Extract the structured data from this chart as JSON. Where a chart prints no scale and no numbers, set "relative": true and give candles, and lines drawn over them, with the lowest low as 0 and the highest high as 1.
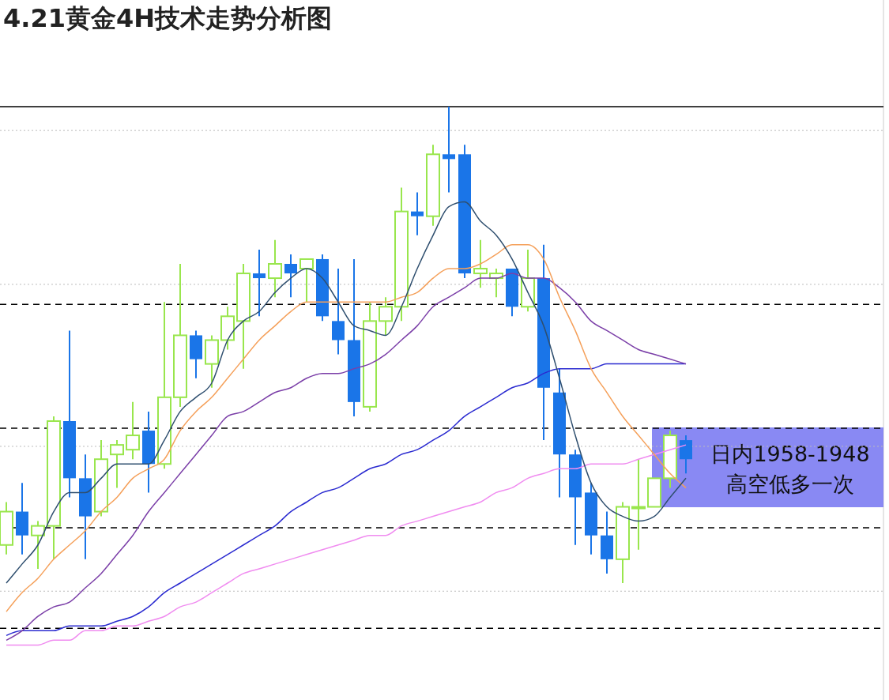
{
  "chart_data": {
    "type": "candlestick",
    "title": "4.21黄金4H技术走势分析图",
    "relative": true,
    "categories": [
      null,
      null,
      null,
      null,
      null,
      null,
      null,
      null,
      null,
      null,
      null,
      null,
      null,
      null,
      null,
      null,
      null,
      null,
      null,
      null,
      null,
      null,
      null,
      null,
      null,
      null,
      null,
      null,
      null,
      null,
      null,
      null,
      null,
      null,
      null,
      null,
      null,
      null,
      null,
      null,
      null,
      null,
      null,
      null
    ],
    "ohlc": [
      [
        0.08,
        0.17,
        0.06,
        0.15
      ],
      [
        0.15,
        0.21,
        0.06,
        0.1
      ],
      [
        0.1,
        0.13,
        0.03,
        0.12
      ],
      [
        0.12,
        0.35,
        0.05,
        0.34
      ],
      [
        0.34,
        0.53,
        0.18,
        0.22
      ],
      [
        0.22,
        0.27,
        0.05,
        0.14
      ],
      [
        0.15,
        0.3,
        0.14,
        0.26
      ],
      [
        0.27,
        0.3,
        0.2,
        0.29
      ],
      [
        0.28,
        0.38,
        0.26,
        0.31
      ],
      [
        0.32,
        0.36,
        0.19,
        0.25
      ],
      [
        0.25,
        0.59,
        0.24,
        0.39
      ],
      [
        0.39,
        0.67,
        0.37,
        0.52
      ],
      [
        0.52,
        0.53,
        0.43,
        0.47
      ],
      [
        0.46,
        0.52,
        0.41,
        0.51
      ],
      [
        0.51,
        0.58,
        0.49,
        0.56
      ],
      [
        0.55,
        0.67,
        0.45,
        0.65
      ],
      [
        0.65,
        0.7,
        0.56,
        0.64
      ],
      [
        0.64,
        0.72,
        0.6,
        0.67
      ],
      [
        0.67,
        0.69,
        0.6,
        0.65
      ],
      [
        0.66,
        0.68,
        0.59,
        0.68
      ],
      [
        0.68,
        0.69,
        0.55,
        0.56
      ],
      [
        0.55,
        0.66,
        0.48,
        0.51
      ],
      [
        0.51,
        0.68,
        0.35,
        0.38
      ],
      [
        0.37,
        0.59,
        0.36,
        0.55
      ],
      [
        0.55,
        0.6,
        0.52,
        0.58
      ],
      [
        0.58,
        0.83,
        0.55,
        0.78
      ],
      [
        0.78,
        0.82,
        0.73,
        0.77
      ],
      [
        0.77,
        0.92,
        0.75,
        0.9
      ],
      [
        0.9,
        1.0,
        0.82,
        0.89
      ],
      [
        0.9,
        0.92,
        0.64,
        0.65
      ],
      [
        0.65,
        0.72,
        0.62,
        0.66
      ],
      [
        0.64,
        0.66,
        0.6,
        0.65
      ],
      [
        0.66,
        0.66,
        0.56,
        0.58
      ],
      [
        0.58,
        0.7,
        0.57,
        0.64
      ],
      [
        0.64,
        0.71,
        0.3,
        0.41
      ],
      [
        0.4,
        0.45,
        0.18,
        0.27
      ],
      [
        0.27,
        0.28,
        0.08,
        0.18
      ],
      [
        0.19,
        0.21,
        0.06,
        0.1
      ],
      [
        0.1,
        0.15,
        0.02,
        0.05
      ],
      [
        0.05,
        0.17,
        0,
        0.16
      ],
      [
        0.16,
        0.26,
        0.07,
        0.16
      ],
      [
        0.16,
        0.22,
        0.16,
        0.22
      ],
      [
        0.22,
        0.32,
        0.2,
        0.31
      ],
      [
        0.3,
        0.31,
        0.23,
        0.26
      ]
    ],
    "series": [
      {
        "type": "line",
        "color": "#f08cf0",
        "values": [
          -0.13,
          -0.13,
          -0.13,
          -0.12,
          -0.12,
          -0.1,
          -0.1,
          -0.09,
          -0.09,
          -0.08,
          -0.07,
          -0.05,
          -0.04,
          -0.02,
          0,
          0.02,
          0.03,
          0.04,
          0.05,
          0.06,
          0.07,
          0.08,
          0.09,
          0.1,
          0.1,
          0.12,
          0.13,
          0.14,
          0.15,
          0.16,
          0.17,
          0.19,
          0.2,
          0.22,
          0.23,
          0.24,
          0.24,
          0.25,
          0.25,
          0.25,
          0.26,
          0.27,
          0.28,
          0.29
        ]
      },
      {
        "type": "line",
        "color": "#2a2ad0",
        "values": [
          -0.11,
          -0.1,
          -0.1,
          -0.1,
          -0.09,
          -0.09,
          -0.09,
          -0.08,
          -0.07,
          -0.05,
          -0.02,
          0,
          0.02,
          0.04,
          0.06,
          0.08,
          0.1,
          0.12,
          0.15,
          0.17,
          0.19,
          0.2,
          0.22,
          0.24,
          0.25,
          0.27,
          0.28,
          0.3,
          0.32,
          0.35,
          0.37,
          0.39,
          0.41,
          0.42,
          0.44,
          0.45,
          0.45,
          0.45,
          0.46,
          0.46,
          0.46,
          0.46,
          0.46,
          0.46
        ]
      },
      {
        "type": "line",
        "color": "#7b3fa8",
        "values": [
          -0.12,
          -0.1,
          -0.07,
          -0.05,
          -0.04,
          -0.01,
          0.02,
          0.06,
          0.1,
          0.15,
          0.19,
          0.23,
          0.27,
          0.31,
          0.35,
          0.36,
          0.38,
          0.4,
          0.41,
          0.43,
          0.44,
          0.44,
          0.45,
          0.46,
          0.48,
          0.51,
          0.54,
          0.58,
          0.6,
          0.62,
          0.64,
          0.64,
          0.65,
          0.64,
          0.64,
          0.62,
          0.59,
          0.55,
          0.53,
          0.51,
          0.49,
          0.48,
          0.47,
          0.46
        ]
      },
      {
        "type": "line",
        "color": "#f5a05a",
        "values": [
          -0.06,
          -0.02,
          0.01,
          0.05,
          0.08,
          0.11,
          0.15,
          0.18,
          0.22,
          0.24,
          0.26,
          0.32,
          0.36,
          0.39,
          0.43,
          0.47,
          0.51,
          0.54,
          0.57,
          0.59,
          0.59,
          0.59,
          0.59,
          0.59,
          0.59,
          0.6,
          0.61,
          0.64,
          0.66,
          0.66,
          0.67,
          0.69,
          0.71,
          0.71,
          0.68,
          0.6,
          0.53,
          0.45,
          0.4,
          0.35,
          0.31,
          0.27,
          0.23,
          0.2
        ]
      },
      {
        "type": "line",
        "color": "#2f4f6f",
        "values": [
          0,
          0.04,
          0.08,
          0.15,
          0.19,
          0.19,
          0.22,
          0.25,
          0.25,
          0.25,
          0.3,
          0.36,
          0.39,
          0.42,
          0.51,
          0.55,
          0.57,
          0.61,
          0.64,
          0.66,
          0.64,
          0.59,
          0.54,
          0.53,
          0.52,
          0.58,
          0.66,
          0.73,
          0.79,
          0.8,
          0.76,
          0.73,
          0.68,
          0.61,
          0.54,
          0.43,
          0.31,
          0.21,
          0.16,
          0.14,
          0.13,
          0.14,
          0.18,
          0.22
        ]
      }
    ],
    "ref_lines": [
      {
        "axis": "y",
        "value": 1,
        "color": "#000000",
        "line_style": "solid"
      },
      {
        "axis": "y",
        "value": 0.95,
        "color": "#bbbbbb",
        "line_style": "dotted"
      },
      {
        "axis": "y",
        "value": 0.627,
        "color": "#bbbbbb",
        "line_style": "dotted"
      },
      {
        "axis": "y",
        "value": 0.287,
        "color": "#bbbbbb",
        "line_style": "dotted"
      },
      {
        "axis": "y",
        "value": -0.017,
        "color": "#bbbbbb",
        "line_style": "dotted"
      },
      {
        "axis": "y",
        "value": 0.585,
        "color": "#000000",
        "line_style": "dashed"
      },
      {
        "axis": "y",
        "value": 0.325,
        "color": "#000000",
        "line_style": "dashed"
      },
      {
        "axis": "y",
        "value": 0.116,
        "color": "#000000",
        "line_style": "dashed"
      },
      {
        "axis": "y",
        "value": -0.095,
        "color": "#000000",
        "line_style": "dashed"
      }
    ],
    "annotations": [
      "日内1958-1948",
      "高空低多一次"
    ]
  }
}
